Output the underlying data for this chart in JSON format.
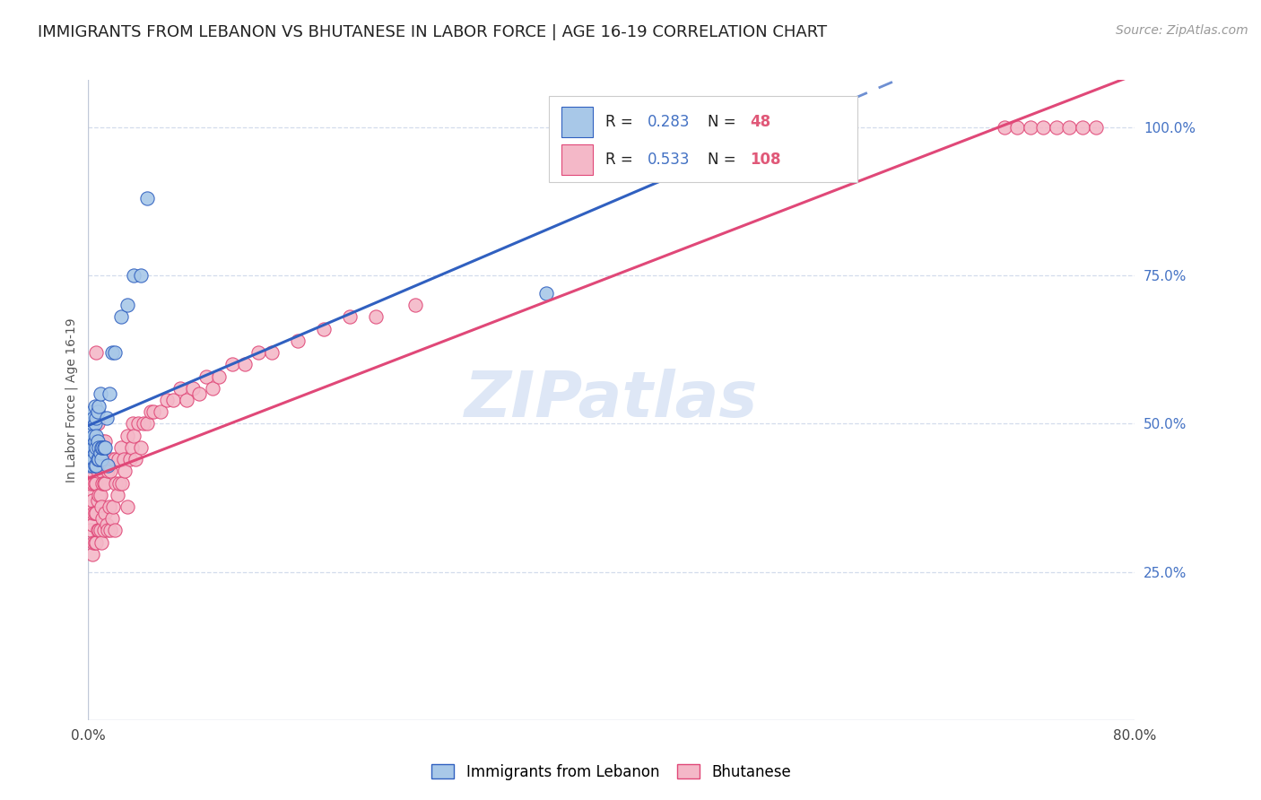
{
  "title": "IMMIGRANTS FROM LEBANON VS BHUTANESE IN LABOR FORCE | AGE 16-19 CORRELATION CHART",
  "source": "Source: ZipAtlas.com",
  "ylabel": "In Labor Force | Age 16-19",
  "lebanon_R": 0.283,
  "lebanon_N": 48,
  "bhutanese_R": 0.533,
  "bhutanese_N": 108,
  "lebanon_color": "#a8c8e8",
  "bhutanese_color": "#f4b8c8",
  "lebanon_line_color": "#3060c0",
  "bhutanese_line_color": "#e04878",
  "watermark_text": "ZIPatlas",
  "watermark_color": "#c8d8f0",
  "legend_box_color": "#4472c4",
  "legend_N_color": "#e05878",
  "background_color": "#ffffff",
  "grid_color": "#c8d4e8",
  "title_fontsize": 13,
  "source_fontsize": 10,
  "axis_label_fontsize": 10,
  "tick_fontsize": 11,
  "xmin": 0.0,
  "xmax": 0.8,
  "ymin": 0.0,
  "ymax": 1.08,
  "lebanon_x": [
    0.001,
    0.001,
    0.002,
    0.002,
    0.002,
    0.002,
    0.003,
    0.003,
    0.003,
    0.003,
    0.003,
    0.004,
    0.004,
    0.004,
    0.004,
    0.005,
    0.005,
    0.005,
    0.005,
    0.005,
    0.006,
    0.006,
    0.006,
    0.006,
    0.007,
    0.007,
    0.007,
    0.008,
    0.008,
    0.008,
    0.009,
    0.009,
    0.01,
    0.01,
    0.011,
    0.012,
    0.013,
    0.014,
    0.015,
    0.016,
    0.018,
    0.02,
    0.025,
    0.03,
    0.035,
    0.04,
    0.045,
    0.35
  ],
  "lebanon_y": [
    0.43,
    0.46,
    0.44,
    0.46,
    0.47,
    0.49,
    0.43,
    0.45,
    0.47,
    0.5,
    0.52,
    0.44,
    0.46,
    0.48,
    0.51,
    0.43,
    0.45,
    0.47,
    0.5,
    0.53,
    0.43,
    0.46,
    0.48,
    0.51,
    0.44,
    0.47,
    0.52,
    0.44,
    0.46,
    0.53,
    0.45,
    0.55,
    0.44,
    0.46,
    0.46,
    0.46,
    0.46,
    0.51,
    0.43,
    0.55,
    0.62,
    0.62,
    0.68,
    0.7,
    0.75,
    0.75,
    0.88,
    0.72
  ],
  "bhutanese_x": [
    0.001,
    0.001,
    0.001,
    0.002,
    0.002,
    0.002,
    0.002,
    0.003,
    0.003,
    0.003,
    0.003,
    0.003,
    0.004,
    0.004,
    0.004,
    0.004,
    0.004,
    0.005,
    0.005,
    0.005,
    0.005,
    0.006,
    0.006,
    0.006,
    0.006,
    0.007,
    0.007,
    0.007,
    0.007,
    0.008,
    0.008,
    0.008,
    0.009,
    0.009,
    0.009,
    0.01,
    0.01,
    0.01,
    0.01,
    0.011,
    0.011,
    0.011,
    0.012,
    0.012,
    0.013,
    0.013,
    0.013,
    0.014,
    0.014,
    0.015,
    0.015,
    0.016,
    0.016,
    0.017,
    0.017,
    0.018,
    0.018,
    0.019,
    0.02,
    0.02,
    0.021,
    0.022,
    0.023,
    0.024,
    0.025,
    0.026,
    0.027,
    0.028,
    0.03,
    0.03,
    0.032,
    0.033,
    0.034,
    0.035,
    0.036,
    0.038,
    0.04,
    0.042,
    0.045,
    0.048,
    0.05,
    0.055,
    0.06,
    0.065,
    0.07,
    0.075,
    0.08,
    0.085,
    0.09,
    0.095,
    0.1,
    0.11,
    0.12,
    0.13,
    0.14,
    0.16,
    0.18,
    0.2,
    0.22,
    0.25,
    0.7,
    0.71,
    0.72,
    0.73,
    0.74,
    0.75,
    0.76,
    0.77
  ],
  "bhutanese_y": [
    0.35,
    0.38,
    0.42,
    0.32,
    0.36,
    0.4,
    0.44,
    0.28,
    0.33,
    0.37,
    0.42,
    0.46,
    0.3,
    0.35,
    0.4,
    0.44,
    0.48,
    0.3,
    0.35,
    0.4,
    0.45,
    0.3,
    0.35,
    0.4,
    0.62,
    0.32,
    0.37,
    0.42,
    0.5,
    0.32,
    0.38,
    0.45,
    0.32,
    0.38,
    0.46,
    0.3,
    0.36,
    0.42,
    0.46,
    0.34,
    0.4,
    0.47,
    0.32,
    0.4,
    0.35,
    0.4,
    0.47,
    0.33,
    0.43,
    0.32,
    0.42,
    0.36,
    0.43,
    0.32,
    0.42,
    0.34,
    0.44,
    0.36,
    0.32,
    0.44,
    0.4,
    0.38,
    0.44,
    0.4,
    0.46,
    0.4,
    0.44,
    0.42,
    0.36,
    0.48,
    0.44,
    0.46,
    0.5,
    0.48,
    0.44,
    0.5,
    0.46,
    0.5,
    0.5,
    0.52,
    0.52,
    0.52,
    0.54,
    0.54,
    0.56,
    0.54,
    0.56,
    0.55,
    0.58,
    0.56,
    0.58,
    0.6,
    0.6,
    0.62,
    0.62,
    0.64,
    0.66,
    0.68,
    0.68,
    0.7,
    1.0,
    1.0,
    1.0,
    1.0,
    1.0,
    1.0,
    1.0,
    1.0
  ]
}
